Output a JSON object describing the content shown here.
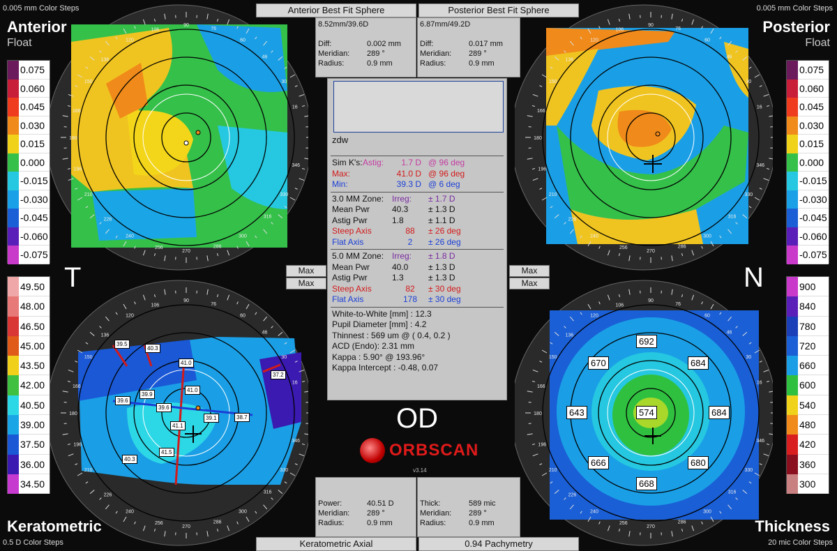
{
  "steps": {
    "top_left": "0.005 mm Color Steps",
    "top_right": "0.005 mm Color Steps",
    "bottom_left": "0.5 D Color Steps",
    "bottom_right": "20 mic Color Steps"
  },
  "quadrants": {
    "anterior_title": "Anterior",
    "anterior_sub": "Float",
    "posterior_title": "Posterior",
    "posterior_sub": "Float",
    "keratometric_title": "Keratometric",
    "thickness_title": "Thickness"
  },
  "side_letters": {
    "left": "T",
    "right": "N"
  },
  "top_buttons": {
    "anterior": "Anterior Best Fit Sphere",
    "posterior": "Posterior Best Fit Sphere"
  },
  "bottom_buttons": {
    "keratometric": "Keratometric Axial",
    "pachymetry": "0.94 Pachymetry"
  },
  "anterior_box": {
    "header": "8.52mm/39.6D",
    "rows": [
      {
        "k": "Diff:",
        "v": "0.002 mm"
      },
      {
        "k": "Meridian:",
        "v": "289 °"
      },
      {
        "k": "Radius:",
        "v": "0.9 mm"
      }
    ]
  },
  "posterior_box": {
    "header": "6.87mm/49.2D",
    "rows": [
      {
        "k": "Diff:",
        "v": "0.017 mm"
      },
      {
        "k": "Meridian:",
        "v": "289 °"
      },
      {
        "k": "Radius:",
        "v": "0.9 mm"
      }
    ]
  },
  "kerato_box": {
    "rows": [
      {
        "k": "Power:",
        "v": "40.51 D"
      },
      {
        "k": "Meridian:",
        "v": "289 °"
      },
      {
        "k": "Radius:",
        "v": "0.9 mm"
      }
    ]
  },
  "thick_box": {
    "rows": [
      {
        "k": "Thick:",
        "v": "589 mic"
      },
      {
        "k": "Meridian:",
        "v": "289 °"
      },
      {
        "k": "Radius:",
        "v": "0.9 mm"
      }
    ]
  },
  "max_buttons": [
    "Max",
    "Max",
    "Max",
    "Max"
  ],
  "center": {
    "patient_partial": "zdw",
    "simk": {
      "label": "Sim K's:",
      "astig_label": "Astig:",
      "astig_val": "1.7 D",
      "astig_axis": "@ 96 deg",
      "max_label": "Max:",
      "max_val": "41.0 D",
      "max_axis": "@ 96 deg",
      "min_label": "Min:",
      "min_val": "39.3 D",
      "min_axis": "@ 6 deg"
    },
    "zone3": {
      "label": "3.0 MM Zone:",
      "irreg_label": "Irreg:",
      "irreg_val": "± 1.7 D",
      "mean_label": "Mean Pwr",
      "mean_val": "40.3",
      "mean_pm": "± 1.3 D",
      "astig_label": "Astig Pwr",
      "astig_val": "1.8",
      "astig_pm": "± 1.1 D",
      "steep_label": "Steep Axis",
      "steep_val": "88",
      "steep_pm": "± 26 deg",
      "flat_label": "Flat Axis",
      "flat_val": "2",
      "flat_pm": "± 26 deg"
    },
    "zone5": {
      "label": "5.0 MM Zone:",
      "irreg_label": "Irreg:",
      "irreg_val": "± 1.8 D",
      "mean_label": "Mean Pwr",
      "mean_val": "40.0",
      "mean_pm": "± 1.3 D",
      "astig_label": "Astig Pwr",
      "astig_val": "1.3",
      "astig_pm": "± 1.3 D",
      "steep_label": "Steep Axis",
      "steep_val": "82",
      "steep_pm": "± 30 deg",
      "flat_label": "Flat Axis",
      "flat_val": "178",
      "flat_pm": "± 30 deg"
    },
    "extra": [
      "White-to-White [mm] : 12.3",
      "Pupil Diameter [mm] :  4.2",
      "Thinnest : 569 um @ ( 0.4, 0.2 )",
      "ACD (Endo): 2.31 mm",
      "Kappa : 5.90° @ 193.96°",
      "Kappa Intercept : -0.48, 0.07"
    ]
  },
  "eye": "OD",
  "logo": "ORBSCAN",
  "version": "v3.14",
  "legend_float_left": [
    "0.075",
    "0.060",
    "0.045",
    "0.030",
    "0.015",
    "0.000",
    "-0.015",
    "-0.030",
    "-0.045",
    "-0.060",
    "-0.075"
  ],
  "legend_float_right": [
    "0.075",
    "0.060",
    "0.045",
    "0.030",
    "0.015",
    "0.000",
    "-0.015",
    "-0.030",
    "-0.045",
    "-0.060",
    "-0.075"
  ],
  "legend_kerato": [
    "49.50",
    "48.00",
    "46.50",
    "45.00",
    "43.50",
    "42.00",
    "40.50",
    "39.00",
    "37.50",
    "36.00",
    "34.50"
  ],
  "legend_thick": [
    "900",
    "840",
    "780",
    "720",
    "660",
    "600",
    "540",
    "480",
    "420",
    "360",
    "300"
  ],
  "colors": {
    "float_scale": [
      "#6b1a5c",
      "#c81e3a",
      "#ef3b1e",
      "#f08a1a",
      "#f1d21a",
      "#35c04a",
      "#25c8e0",
      "#1aa0e6",
      "#1a5fd6",
      "#5a1fb8",
      "#c93acb"
    ],
    "kerato_scale": [
      "#f0a7a7",
      "#e87979",
      "#d93636",
      "#e05a1a",
      "#f0d01a",
      "#40c040",
      "#2dd8e6",
      "#1aa6e6",
      "#1a58d6",
      "#3a1ab0",
      "#c73ad0"
    ],
    "thick_scale": [
      "#c93acb",
      "#5a1fb8",
      "#1a3fb8",
      "#1a5fd6",
      "#1a9fe6",
      "#30c040",
      "#f0d21a",
      "#f08a1a",
      "#d81e1e",
      "#8a1020",
      "#c98080"
    ]
  },
  "thickness_labels": [
    "692",
    "670",
    "684",
    "643",
    "574",
    "684",
    "666",
    "680",
    "668"
  ],
  "kerato_labels": [
    "39.5",
    "40.3",
    "41.0",
    "41.0",
    "39.9",
    "39.6",
    "39.6",
    "39.1",
    "38.7",
    "41.1",
    "41.5",
    "40.3",
    "37.2"
  ],
  "degree_labels": [
    "90",
    "106",
    "120",
    "136",
    "150",
    "166",
    "180",
    "196",
    "210",
    "226",
    "240",
    "256",
    "270",
    "286",
    "300",
    "316",
    "330",
    "346",
    "16",
    "30",
    "46",
    "60",
    "76"
  ]
}
